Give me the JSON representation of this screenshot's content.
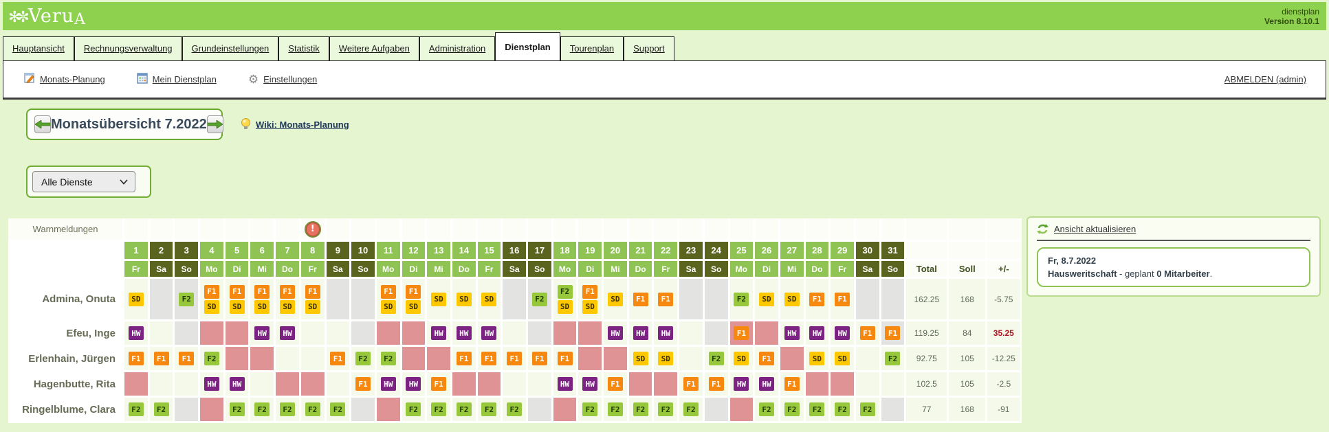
{
  "header": {
    "logo": "Veru",
    "logo_a": "A",
    "app_label": "dienstplan",
    "version": "Version 8.10.1"
  },
  "tabs": [
    {
      "label": "Hauptansicht",
      "active": false
    },
    {
      "label": "Rechnungsverwaltung",
      "active": false
    },
    {
      "label": "Grundeinstellungen",
      "active": false
    },
    {
      "label": "Statistik",
      "active": false
    },
    {
      "label": "Weitere Aufgaben",
      "active": false
    },
    {
      "label": "Administration",
      "active": false
    },
    {
      "label": "Dienstplan",
      "active": true
    },
    {
      "label": "Tourenplan",
      "active": false
    },
    {
      "label": "Support",
      "active": false
    }
  ],
  "toolbar": {
    "links": [
      {
        "label": "Monats-Planung",
        "icon": "edit-calendar-icon"
      },
      {
        "label": "Mein Dienstplan",
        "icon": "calendar-icon"
      },
      {
        "label": "Einstellungen",
        "icon": "gear-icon"
      }
    ],
    "logout_label": "ABMELDEN (admin)"
  },
  "month_nav": {
    "title": "Monatsübersicht 7.2022",
    "wiki_label": "Wiki: Monats-Planung"
  },
  "filter": {
    "selected": "Alle Dienste"
  },
  "shift_types": {
    "SD": {
      "bg": "#fdc800",
      "fg": "#3a3000"
    },
    "F1": {
      "bg": "#f6870f",
      "fg": "#ffffff"
    },
    "F2": {
      "bg": "#97c83c",
      "fg": "#203a00"
    },
    "HW": {
      "bg": "#7c2282",
      "fg": "#ffffff"
    }
  },
  "table": {
    "warn_label": "Warnmeldungen",
    "warn_day": 8,
    "sum_headers": {
      "total": "Total",
      "soll": "Soll",
      "diff": "+/-"
    },
    "days": [
      {
        "n": "1",
        "w": "Fr",
        "we": false
      },
      {
        "n": "2",
        "w": "Sa",
        "we": true
      },
      {
        "n": "3",
        "w": "So",
        "we": true
      },
      {
        "n": "4",
        "w": "Mo",
        "we": false
      },
      {
        "n": "5",
        "w": "Di",
        "we": false
      },
      {
        "n": "6",
        "w": "Mi",
        "we": false
      },
      {
        "n": "7",
        "w": "Do",
        "we": false
      },
      {
        "n": "8",
        "w": "Fr",
        "we": false
      },
      {
        "n": "9",
        "w": "Sa",
        "we": true
      },
      {
        "n": "10",
        "w": "So",
        "we": true
      },
      {
        "n": "11",
        "w": "Mo",
        "we": false
      },
      {
        "n": "12",
        "w": "Di",
        "we": false
      },
      {
        "n": "13",
        "w": "Mi",
        "we": false
      },
      {
        "n": "14",
        "w": "Do",
        "we": false
      },
      {
        "n": "15",
        "w": "Fr",
        "we": false
      },
      {
        "n": "16",
        "w": "Sa",
        "we": true
      },
      {
        "n": "17",
        "w": "So",
        "we": true
      },
      {
        "n": "18",
        "w": "Mo",
        "we": false
      },
      {
        "n": "19",
        "w": "Di",
        "we": false
      },
      {
        "n": "20",
        "w": "Mi",
        "we": false
      },
      {
        "n": "21",
        "w": "Do",
        "we": false
      },
      {
        "n": "22",
        "w": "Fr",
        "we": false
      },
      {
        "n": "23",
        "w": "Sa",
        "we": true
      },
      {
        "n": "24",
        "w": "So",
        "we": true
      },
      {
        "n": "25",
        "w": "Mo",
        "we": false
      },
      {
        "n": "26",
        "w": "Di",
        "we": false
      },
      {
        "n": "27",
        "w": "Mi",
        "we": false
      },
      {
        "n": "28",
        "w": "Do",
        "we": false
      },
      {
        "n": "29",
        "w": "Fr",
        "we": false
      },
      {
        "n": "30",
        "w": "Sa",
        "we": true
      },
      {
        "n": "31",
        "w": "So",
        "we": true
      }
    ],
    "rows": [
      {
        "name": "Admina, Onuta",
        "cells": [
          "SD",
          "g",
          "g:F2",
          "F1+SD",
          "F1+SD",
          "F1+SD",
          "F1+SD",
          "F1+SD",
          "g",
          "g",
          "F1+SD",
          "F1+SD",
          "SD",
          "SD",
          "SD",
          "g",
          "g:F2",
          "F2+SD",
          "F1+SD",
          "SD",
          "F1",
          "F1",
          "g",
          "g",
          "F2",
          "SD",
          "SD",
          "F1",
          "F1",
          "g",
          "g"
        ],
        "total": "162.25",
        "soll": "168",
        "diff": "-5.75",
        "diff_red": false,
        "tall": true
      },
      {
        "name": "Efeu, Inge",
        "cells": [
          "HW",
          "",
          "g",
          "p",
          "p",
          "HW",
          "HW",
          "",
          "",
          "g",
          "p",
          "p",
          "HW",
          "HW",
          "HW",
          "",
          "g",
          "p",
          "p",
          "HW",
          "HW",
          "HW",
          "",
          "g",
          "p:F1",
          "p",
          "HW",
          "HW",
          "HW",
          "F1",
          "g:F1"
        ],
        "total": "119.25",
        "soll": "84",
        "diff": "35.25",
        "diff_red": true,
        "tall": false
      },
      {
        "name": "Erlenhain, Jürgen",
        "cells": [
          "F1",
          "F1",
          "F1",
          "F2",
          "p",
          "p",
          "",
          "",
          "F1",
          "F2",
          "F2",
          "p",
          "p",
          "F1",
          "F1",
          "F1",
          "F1",
          "F1",
          "p",
          "p",
          "SD",
          "SD",
          "",
          "F2",
          "SD",
          "F1",
          "p",
          "SD",
          "SD",
          "",
          "F2"
        ],
        "total": "92.75",
        "soll": "105",
        "diff": "-12.25",
        "diff_red": false,
        "tall": false
      },
      {
        "name": "Hagenbutte, Rita",
        "cells": [
          "p",
          "",
          "",
          "HW",
          "HW",
          "",
          "p",
          "p",
          "",
          "F1",
          "HW",
          "HW",
          "F1",
          "p",
          "p",
          "",
          "",
          "HW",
          "HW",
          "F1",
          "p",
          "p",
          "F1",
          "F1",
          "HW",
          "HW",
          "F1",
          "p",
          "p",
          "",
          ""
        ],
        "total": "102.5",
        "soll": "105",
        "diff": "-2.5",
        "diff_red": false,
        "tall": false
      },
      {
        "name": "Ringelblume, Clara",
        "cells": [
          "F2",
          "F2",
          "g",
          "p",
          "F2",
          "F2",
          "F2",
          "F2",
          "F2",
          "g",
          "p",
          "F2",
          "F2",
          "F2",
          "F2",
          "F2",
          "g",
          "p",
          "F2",
          "F2",
          "F2",
          "F2",
          "F2",
          "g",
          "p",
          "F2",
          "F2",
          "F2",
          "F2",
          "F2",
          "g"
        ],
        "total": "77",
        "soll": "168",
        "diff": "-91",
        "diff_red": false,
        "tall": false
      }
    ]
  },
  "panel": {
    "refresh_label": "Ansicht aktualisieren",
    "info_date": "Fr, 8.7.2022",
    "info_bold1": "Hausweritschaft",
    "info_mid": " - geplant ",
    "info_bold2": "0 Mitarbeiter",
    "info_end": "."
  }
}
